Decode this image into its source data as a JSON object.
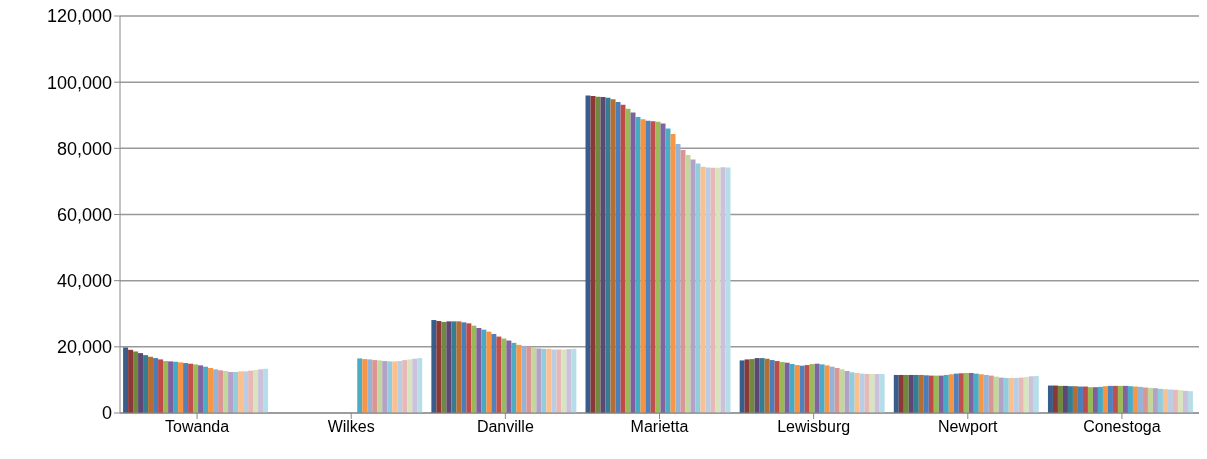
{
  "chart_data": {
    "type": "bar",
    "categories": [
      "Towanda",
      "Wilkes",
      "Danville",
      "Marietta",
      "Lewisburg",
      "Newport",
      "Conestoga"
    ],
    "ylim": [
      0,
      120000
    ],
    "yticks": [
      {
        "value": 0,
        "label": "0"
      },
      {
        "value": 20000,
        "label": "20,000"
      },
      {
        "value": 40000,
        "label": "40,000"
      },
      {
        "value": 60000,
        "label": "60,000"
      },
      {
        "value": 80000,
        "label": "80,000"
      },
      {
        "value": 100000,
        "label": "100,000"
      },
      {
        "value": 120000,
        "label": "120,000"
      }
    ],
    "grid": "y",
    "legend": false,
    "series": [
      {
        "color": "#385d8a",
        "values": [
          19800,
          null,
          28100,
          96000,
          15900,
          11500,
          8300
        ]
      },
      {
        "color": "#8c3836",
        "values": [
          19100,
          null,
          27800,
          95800,
          16200,
          11500,
          8300
        ]
      },
      {
        "color": "#71893f",
        "values": [
          18600,
          null,
          27500,
          95600,
          16300,
          11500,
          8200
        ]
      },
      {
        "color": "#5c4776",
        "values": [
          18100,
          null,
          27700,
          95500,
          16600,
          11500,
          8200
        ]
      },
      {
        "color": "#357d91",
        "values": [
          17500,
          null,
          27700,
          95300,
          16600,
          11500,
          8100
        ]
      },
      {
        "color": "#b66d31",
        "values": [
          17000,
          null,
          27700,
          94800,
          16400,
          11500,
          8100
        ]
      },
      {
        "color": "#4a7ebb",
        "values": [
          16600,
          null,
          27400,
          94000,
          16000,
          11400,
          8000
        ]
      },
      {
        "color": "#be4b48",
        "values": [
          16200,
          null,
          27100,
          93200,
          15700,
          11300,
          8000
        ]
      },
      {
        "color": "#98b954",
        "values": [
          15700,
          null,
          26400,
          92000,
          15400,
          11300,
          7800
        ]
      },
      {
        "color": "#7d60a0",
        "values": [
          15600,
          null,
          25700,
          90800,
          15200,
          11300,
          7800
        ]
      },
      {
        "color": "#46aac5",
        "values": [
          15500,
          null,
          25200,
          89500,
          14800,
          11500,
          7900
        ]
      },
      {
        "color": "#f69240",
        "values": [
          15300,
          null,
          24600,
          88800,
          14500,
          11700,
          8100
        ]
      },
      {
        "color": "#4f81bd",
        "values": [
          15100,
          null,
          23900,
          88300,
          14300,
          11900,
          8200
        ]
      },
      {
        "color": "#c0504d",
        "values": [
          14900,
          null,
          23100,
          88200,
          14500,
          12000,
          8200
        ]
      },
      {
        "color": "#9bbb59",
        "values": [
          14700,
          null,
          22500,
          88000,
          14800,
          12100,
          8200
        ]
      },
      {
        "color": "#8064a2",
        "values": [
          14400,
          null,
          21900,
          87500,
          14900,
          12100,
          8200
        ]
      },
      {
        "color": "#4bacc6",
        "values": [
          14000,
          16500,
          21200,
          86000,
          14700,
          11900,
          8100
        ]
      },
      {
        "color": "#f79646",
        "values": [
          13600,
          16300,
          20600,
          84300,
          14400,
          11700,
          8000
        ]
      },
      {
        "color": "#95b3d7",
        "values": [
          13200,
          16200,
          20300,
          81300,
          14000,
          11500,
          7900
        ]
      },
      {
        "color": "#d99694",
        "values": [
          12900,
          16000,
          20100,
          79500,
          13600,
          11300,
          7700
        ]
      },
      {
        "color": "#c3d69b",
        "values": [
          12700,
          15900,
          19800,
          78000,
          13200,
          11000,
          7600
        ]
      },
      {
        "color": "#b3a2c7",
        "values": [
          12400,
          15700,
          19500,
          76600,
          12700,
          10700,
          7500
        ]
      },
      {
        "color": "#93cddd",
        "values": [
          12400,
          15600,
          19400,
          75400,
          12300,
          10600,
          7300
        ]
      },
      {
        "color": "#fac090",
        "values": [
          12600,
          15600,
          19400,
          74400,
          12100,
          10600,
          7200
        ]
      },
      {
        "color": "#b9cde5",
        "values": [
          12600,
          15700,
          19200,
          74200,
          11900,
          10600,
          7100
        ]
      },
      {
        "color": "#e6b9b8",
        "values": [
          12800,
          16000,
          19200,
          74100,
          11800,
          10700,
          7000
        ]
      },
      {
        "color": "#d7e4bd",
        "values": [
          13000,
          16200,
          19200,
          74100,
          11800,
          10900,
          6900
        ]
      },
      {
        "color": "#ccc1da",
        "values": [
          13200,
          16400,
          19300,
          74300,
          11800,
          11100,
          6700
        ]
      },
      {
        "color": "#b7dee8",
        "values": [
          13400,
          16600,
          19400,
          74200,
          11800,
          11200,
          6600
        ]
      }
    ]
  }
}
